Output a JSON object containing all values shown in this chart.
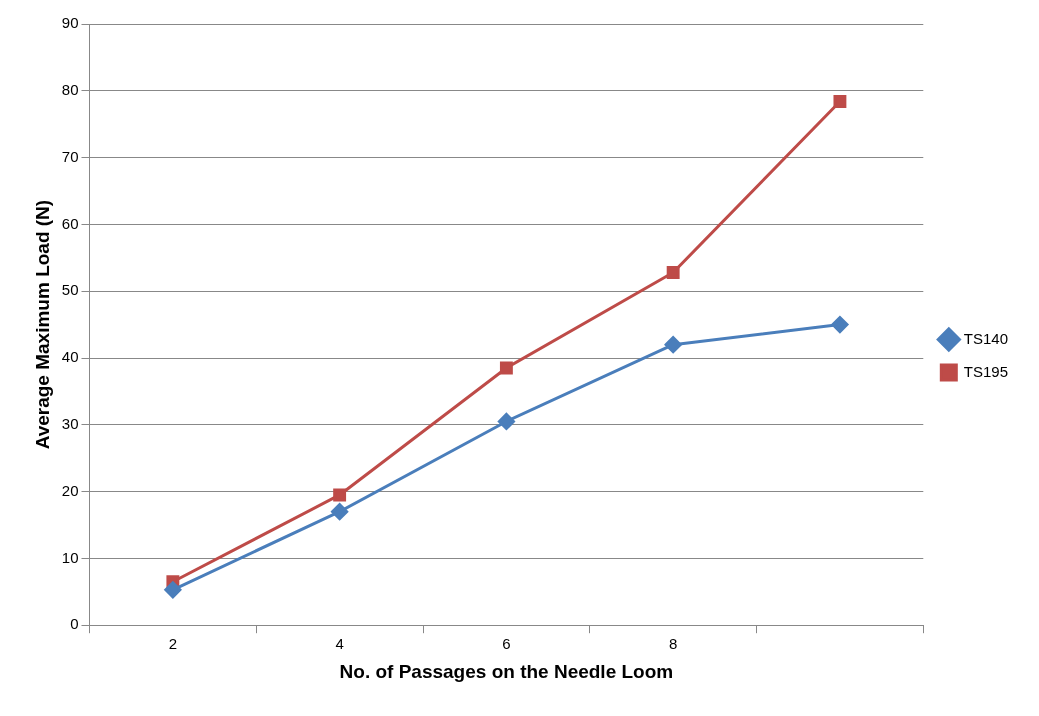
{
  "chart_data": {
    "type": "line",
    "xlabel": "No. of Passages on the Needle Loom",
    "ylabel": "Average Maximum Load (N)",
    "categories": [
      "2",
      "4",
      "6",
      "8",
      null
    ],
    "series": [
      {
        "name": "TS140",
        "color": "#4a7ebb",
        "marker": "diamond",
        "values": [
          5.3,
          17,
          30.5,
          42,
          45
        ]
      },
      {
        "name": "TS195",
        "color": "#be4b48",
        "marker": "square",
        "values": [
          6.5,
          19.5,
          38.5,
          52.8,
          78.4
        ]
      }
    ],
    "ylim": [
      0,
      90
    ],
    "yticks": [
      0,
      10,
      20,
      30,
      40,
      50,
      60,
      70,
      80,
      90
    ],
    "grid": "y",
    "legend": "right"
  }
}
